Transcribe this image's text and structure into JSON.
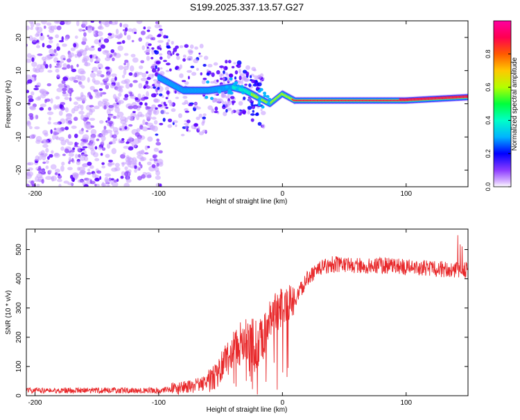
{
  "figure_title": "S199.2025.337.13.57.G27",
  "colors": {
    "snr_line": "#e8292b",
    "frame": "#000000",
    "colormap": [
      "#c8a0ff",
      "#8c3cff",
      "#5a00ff",
      "#0000ff",
      "#00b4ff",
      "#00ffc8",
      "#00ff3c",
      "#b4ff00",
      "#ffc800",
      "#ff5a00",
      "#ff0050",
      "#ff00a0"
    ]
  },
  "chart_data": [
    {
      "type": "heatmap",
      "title": "",
      "xlabel": "Height of straight line (km)",
      "ylabel": "Frequency (Hz)",
      "xlim": [
        -207,
        150
      ],
      "ylim": [
        -25,
        25
      ],
      "x_ticks": [
        -200,
        -100,
        0,
        100
      ],
      "y_ticks": [
        -20,
        -10,
        0,
        10,
        20
      ],
      "colorbar": {
        "label": "Normalized spectral amplitude",
        "range": [
          0,
          1
        ],
        "ticks": [
          "0.0",
          "0.2",
          "0.4",
          "0.6",
          "0.8"
        ],
        "tick_values": [
          0.0,
          0.2,
          0.4,
          0.6,
          0.8
        ]
      },
      "description_of_signal": {
        "ridge_x_start_km": -100,
        "ridge_frequency_hz": [
          [
            -100,
            8
          ],
          [
            -80,
            4
          ],
          [
            -60,
            4
          ],
          [
            -40,
            5
          ],
          [
            -30,
            4
          ],
          [
            -20,
            2
          ],
          [
            -10,
            0
          ],
          [
            0,
            3
          ],
          [
            5,
            2
          ],
          [
            10,
            1
          ],
          [
            100,
            1
          ],
          [
            150,
            2
          ]
        ],
        "noise_region_km": [
          -207,
          -100
        ],
        "noise_freq_range_hz": [
          -25,
          25
        ]
      }
    },
    {
      "type": "line",
      "title": "",
      "xlabel": "Height of straight line (km)",
      "ylabel": "SNR (10 * v/v)",
      "xlim": [
        -207,
        150
      ],
      "ylim": [
        0,
        570
      ],
      "x_ticks": [
        -200,
        -100,
        0,
        100
      ],
      "y_ticks": [
        0,
        100,
        200,
        300,
        400,
        500
      ],
      "series": [
        {
          "name": "SNR",
          "envelope_x": [
            -207,
            -100,
            -80,
            -60,
            -50,
            -40,
            -30,
            -20,
            -10,
            0,
            10,
            20,
            30,
            40,
            60,
            80,
            100,
            120,
            140,
            150
          ],
          "envelope_y": [
            18,
            18,
            25,
            45,
            90,
            160,
            190,
            170,
            250,
            310,
            330,
            400,
            435,
            450,
            445,
            445,
            440,
            435,
            430,
            430
          ]
        }
      ]
    }
  ]
}
